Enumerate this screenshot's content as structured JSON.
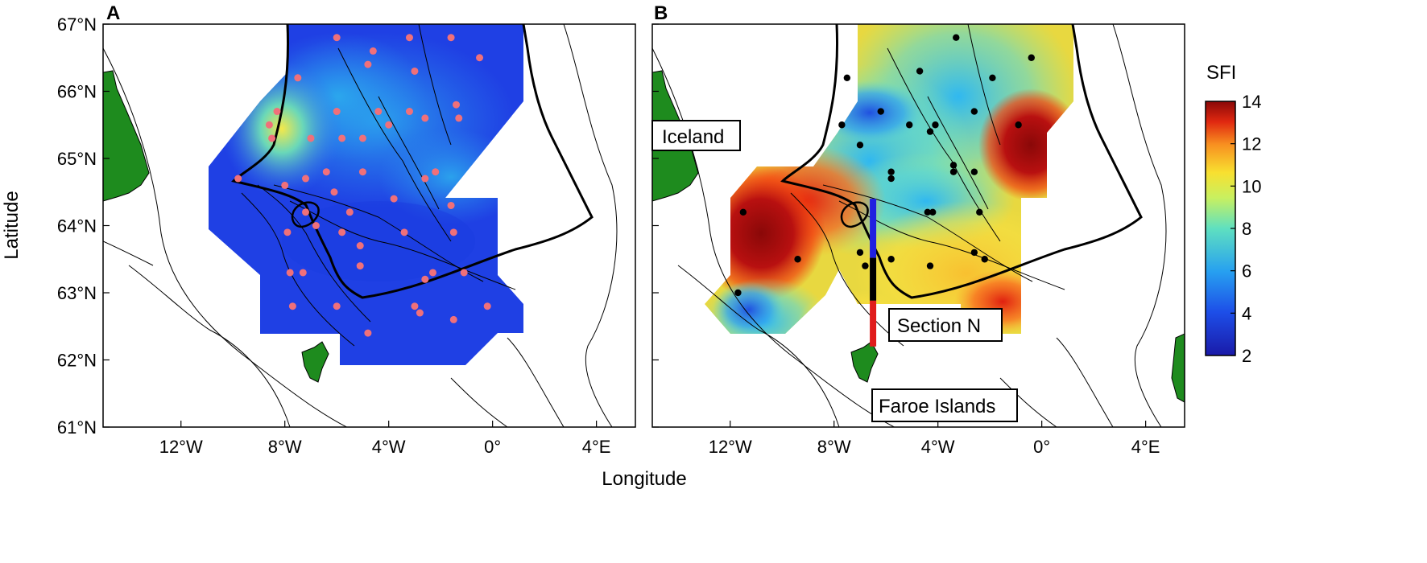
{
  "figure": {
    "ylabel": "Latitude",
    "xlabel": "Longitude",
    "lat_ticks": [
      "67°N",
      "66°N",
      "65°N",
      "64°N",
      "63°N",
      "62°N",
      "61°N"
    ],
    "lon_ticks_a": [
      "12°W",
      "8°W",
      "4°W",
      "0°",
      "4°E"
    ],
    "lon_ticks_b": [
      "12°W",
      "8°W",
      "4°W",
      "0°",
      "4°E"
    ]
  },
  "panel_a": {
    "letter": "A"
  },
  "panel_b": {
    "letter": "B",
    "labels": {
      "iceland": "Iceland",
      "section": "Section N",
      "faroe": "Faroe Islands"
    }
  },
  "colorbar": {
    "title": "SFI",
    "min": 2,
    "max": 14,
    "ticks": [
      "14",
      "12",
      "10",
      "8",
      "6",
      "4",
      "2"
    ]
  },
  "colors": {
    "land": "#1e8b1e",
    "station_a": "#f0707a",
    "station_b": "#000000",
    "section_north": "#2020e0",
    "section_south": "#e01c1c"
  },
  "chart_data": {
    "type": "map",
    "lon_range": [
      -15,
      5.5
    ],
    "lat_range": [
      61,
      67
    ],
    "stations_a": [
      {
        "lon": -6.0,
        "lat": 66.8
      },
      {
        "lon": -4.6,
        "lat": 66.6
      },
      {
        "lon": -3.2,
        "lat": 66.8
      },
      {
        "lon": -1.6,
        "lat": 66.8
      },
      {
        "lon": -0.5,
        "lat": 66.5
      },
      {
        "lon": -4.8,
        "lat": 66.4
      },
      {
        "lon": -3.0,
        "lat": 66.3
      },
      {
        "lon": -7.5,
        "lat": 66.2
      },
      {
        "lon": -8.3,
        "lat": 65.7
      },
      {
        "lon": -6.0,
        "lat": 65.7
      },
      {
        "lon": -4.4,
        "lat": 65.7
      },
      {
        "lon": -3.2,
        "lat": 65.7
      },
      {
        "lon": -2.6,
        "lat": 65.6
      },
      {
        "lon": -1.4,
        "lat": 65.8
      },
      {
        "lon": -1.3,
        "lat": 65.6
      },
      {
        "lon": -8.6,
        "lat": 65.5
      },
      {
        "lon": -8.5,
        "lat": 65.3
      },
      {
        "lon": -7.0,
        "lat": 65.3
      },
      {
        "lon": -5.8,
        "lat": 65.3
      },
      {
        "lon": -5.0,
        "lat": 65.3
      },
      {
        "lon": -4.0,
        "lat": 65.5
      },
      {
        "lon": -6.4,
        "lat": 64.8
      },
      {
        "lon": -5.0,
        "lat": 64.8
      },
      {
        "lon": -2.2,
        "lat": 64.8
      },
      {
        "lon": -2.6,
        "lat": 64.7
      },
      {
        "lon": -9.8,
        "lat": 64.7
      },
      {
        "lon": -8.0,
        "lat": 64.6
      },
      {
        "lon": -7.2,
        "lat": 64.7
      },
      {
        "lon": -6.1,
        "lat": 64.5
      },
      {
        "lon": -3.8,
        "lat": 64.4
      },
      {
        "lon": -1.6,
        "lat": 64.3
      },
      {
        "lon": -7.2,
        "lat": 64.2
      },
      {
        "lon": -5.5,
        "lat": 64.2
      },
      {
        "lon": -7.9,
        "lat": 63.9
      },
      {
        "lon": -6.8,
        "lat": 64.0
      },
      {
        "lon": -5.8,
        "lat": 63.9
      },
      {
        "lon": -3.4,
        "lat": 63.9
      },
      {
        "lon": -1.5,
        "lat": 63.9
      },
      {
        "lon": -5.1,
        "lat": 63.7
      },
      {
        "lon": -7.8,
        "lat": 63.3
      },
      {
        "lon": -7.3,
        "lat": 63.3
      },
      {
        "lon": -5.1,
        "lat": 63.4
      },
      {
        "lon": -2.3,
        "lat": 63.3
      },
      {
        "lon": -1.1,
        "lat": 63.3
      },
      {
        "lon": -2.6,
        "lat": 63.2
      },
      {
        "lon": -7.7,
        "lat": 62.8
      },
      {
        "lon": -6.0,
        "lat": 62.8
      },
      {
        "lon": -3.0,
        "lat": 62.8
      },
      {
        "lon": -2.8,
        "lat": 62.7
      },
      {
        "lon": -0.2,
        "lat": 62.8
      },
      {
        "lon": -1.5,
        "lat": 62.6
      },
      {
        "lon": -4.8,
        "lat": 62.4
      }
    ],
    "stations_b": [
      {
        "lon": -3.3,
        "lat": 66.8
      },
      {
        "lon": -0.4,
        "lat": 66.5
      },
      {
        "lon": -4.7,
        "lat": 66.3
      },
      {
        "lon": -7.5,
        "lat": 66.2
      },
      {
        "lon": -1.9,
        "lat": 66.2
      },
      {
        "lon": -6.2,
        "lat": 65.7
      },
      {
        "lon": -2.6,
        "lat": 65.7
      },
      {
        "lon": -7.7,
        "lat": 65.5
      },
      {
        "lon": -5.1,
        "lat": 65.5
      },
      {
        "lon": -4.1,
        "lat": 65.5
      },
      {
        "lon": -4.3,
        "lat": 65.4
      },
      {
        "lon": -0.9,
        "lat": 65.5
      },
      {
        "lon": -7.0,
        "lat": 65.2
      },
      {
        "lon": -5.8,
        "lat": 64.8
      },
      {
        "lon": -3.4,
        "lat": 64.9
      },
      {
        "lon": -2.6,
        "lat": 64.8
      },
      {
        "lon": -5.8,
        "lat": 64.7
      },
      {
        "lon": -3.4,
        "lat": 64.8
      },
      {
        "lon": -11.5,
        "lat": 64.2
      },
      {
        "lon": -4.4,
        "lat": 64.2
      },
      {
        "lon": -4.2,
        "lat": 64.2
      },
      {
        "lon": -2.4,
        "lat": 64.2
      },
      {
        "lon": -9.4,
        "lat": 63.5
      },
      {
        "lon": -7.0,
        "lat": 63.6
      },
      {
        "lon": -5.8,
        "lat": 63.5
      },
      {
        "lon": -2.6,
        "lat": 63.6
      },
      {
        "lon": -2.2,
        "lat": 63.5
      },
      {
        "lon": -6.8,
        "lat": 63.4
      },
      {
        "lon": -4.3,
        "lat": 63.4
      },
      {
        "lon": -11.7,
        "lat": 63.0
      }
    ],
    "section_n": {
      "lon": -6.5,
      "lat_north_end": 64.4,
      "lat_south_end": 62.2
    },
    "hotspots_b": [
      {
        "lon": -11.0,
        "lat": 64.3,
        "sfi": 14
      },
      {
        "lon": -8.0,
        "lat": 64.7,
        "sfi": 13
      },
      {
        "lon": -1.0,
        "lat": 65.6,
        "sfi": 14
      },
      {
        "lon": -4.0,
        "lat": 63.4,
        "sfi": 10
      },
      {
        "lon": -11.5,
        "lat": 62.9,
        "sfi": 4
      },
      {
        "lon": -4.5,
        "lat": 65.6,
        "sfi": 6
      },
      {
        "lon": -7.0,
        "lat": 65.5,
        "sfi": 5
      }
    ]
  }
}
